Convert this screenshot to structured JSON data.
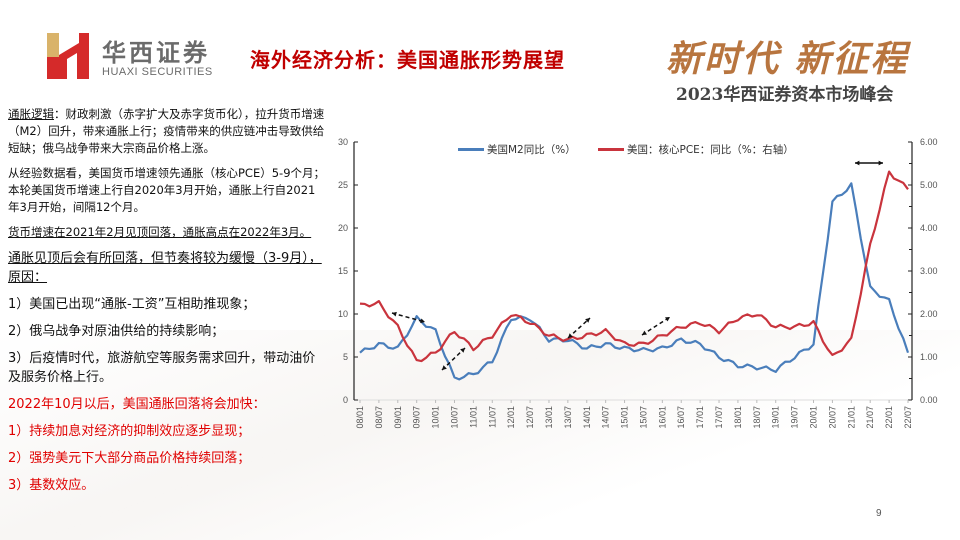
{
  "header": {
    "logo_cn": "华西证券",
    "logo_en": "HUAXI SECURITIES",
    "title": "海外经济分析：美国通胀形势展望",
    "slogan": "新时代  新征程",
    "summit": "2023华西证券资本市场峰会"
  },
  "left_text": {
    "p1_label": "通胀逻辑",
    "p1_text": "：财政刺激（赤字扩大及赤字货币化），拉升货币增速（M2）回升，带来通胀上行；疫情带来的供应链冲击导致供给短缺；俄乌战争带来大宗商品价格上涨。",
    "p2": "从经验数据看，美国货币增速领先通胀（核心PCE）5-9个月；本轮美国货币增速上行自2020年3月开始，通胀上行自2021年3月开始，间隔12个月。",
    "p3": "货币增速在2021年2月见顶回落，通胀高点在2022年3月。",
    "p4": "通胀见顶后会有所回落，但节奏将较为缓慢（3-9月），原因：",
    "p5": "1）美国已出现“通胀-工资”互相助推现象；",
    "p6": "2）俄乌战争对原油供给的持续影响；",
    "p7": "3）后疫情时代，旅游航空等服务需求回升，带动油价及服务价格上行。",
    "r1": "2022年10月以后，美国通胀回落将会加快：",
    "r2": "1）持续加息对经济的抑制效应逐步显现；",
    "r3": "2）强势美元下大部分商品价格持续回落；",
    "r4": "3）基数效应。"
  },
  "page_number": "9",
  "colors": {
    "title_red": "#c00000",
    "m2_blue": "#4a7ebb",
    "pce_red": "#c9343d",
    "slogan_gold": "#b8753f"
  },
  "chart_data": {
    "type": "line",
    "title": "",
    "xlabel": "",
    "ylabel": "",
    "ylim": [
      0,
      30
    ],
    "ylim_right": [
      0,
      6
    ],
    "yticks_left": [
      "0",
      "5",
      "10",
      "15",
      "20",
      "25",
      "30"
    ],
    "yticks_right": [
      "0.00",
      "1.00",
      "2.00",
      "3.00",
      "4.00",
      "5.00",
      "6.00"
    ],
    "legend_position": "top",
    "grid": false,
    "x": [
      "08/01",
      "08/07",
      "09/01",
      "09/07",
      "10/01",
      "10/07",
      "11/01",
      "11/07",
      "12/01",
      "12/07",
      "13/01",
      "13/07",
      "14/01",
      "14/07",
      "15/01",
      "15/07",
      "16/01",
      "16/07",
      "17/01",
      "17/07",
      "18/01",
      "18/07",
      "19/01",
      "19/07",
      "20/01",
      "20/07",
      "21/01",
      "21/07",
      "22/01",
      "22/07"
    ],
    "series": [
      {
        "name": "美国M2同比（%）",
        "axis": "left",
        "color": "#4a7ebb",
        "values": [
          5.5,
          6.5,
          6.0,
          9.5,
          8.0,
          2.5,
          3.0,
          4.5,
          9.5,
          9.5,
          7.0,
          7.0,
          6.0,
          6.5,
          6.0,
          5.8,
          6.0,
          7.0,
          6.5,
          5.0,
          4.0,
          3.8,
          3.5,
          5.0,
          6.5,
          23.0,
          25.0,
          13.0,
          11.5,
          5.5
        ]
      },
      {
        "name": "美国：核心PCE：同比（%：右轴）",
        "axis": "right",
        "color": "#c9343d",
        "values": [
          2.2,
          2.25,
          1.7,
          0.9,
          1.1,
          1.6,
          1.2,
          1.5,
          2.0,
          1.8,
          1.5,
          1.4,
          1.5,
          1.6,
          1.3,
          1.3,
          1.5,
          1.7,
          1.8,
          1.6,
          1.9,
          2.0,
          1.7,
          1.7,
          1.8,
          1.0,
          1.4,
          3.6,
          5.3,
          4.9
        ]
      }
    ],
    "annotations": [
      "dashed double-arrows indicating lead/lag between M2 and core PCE"
    ]
  }
}
